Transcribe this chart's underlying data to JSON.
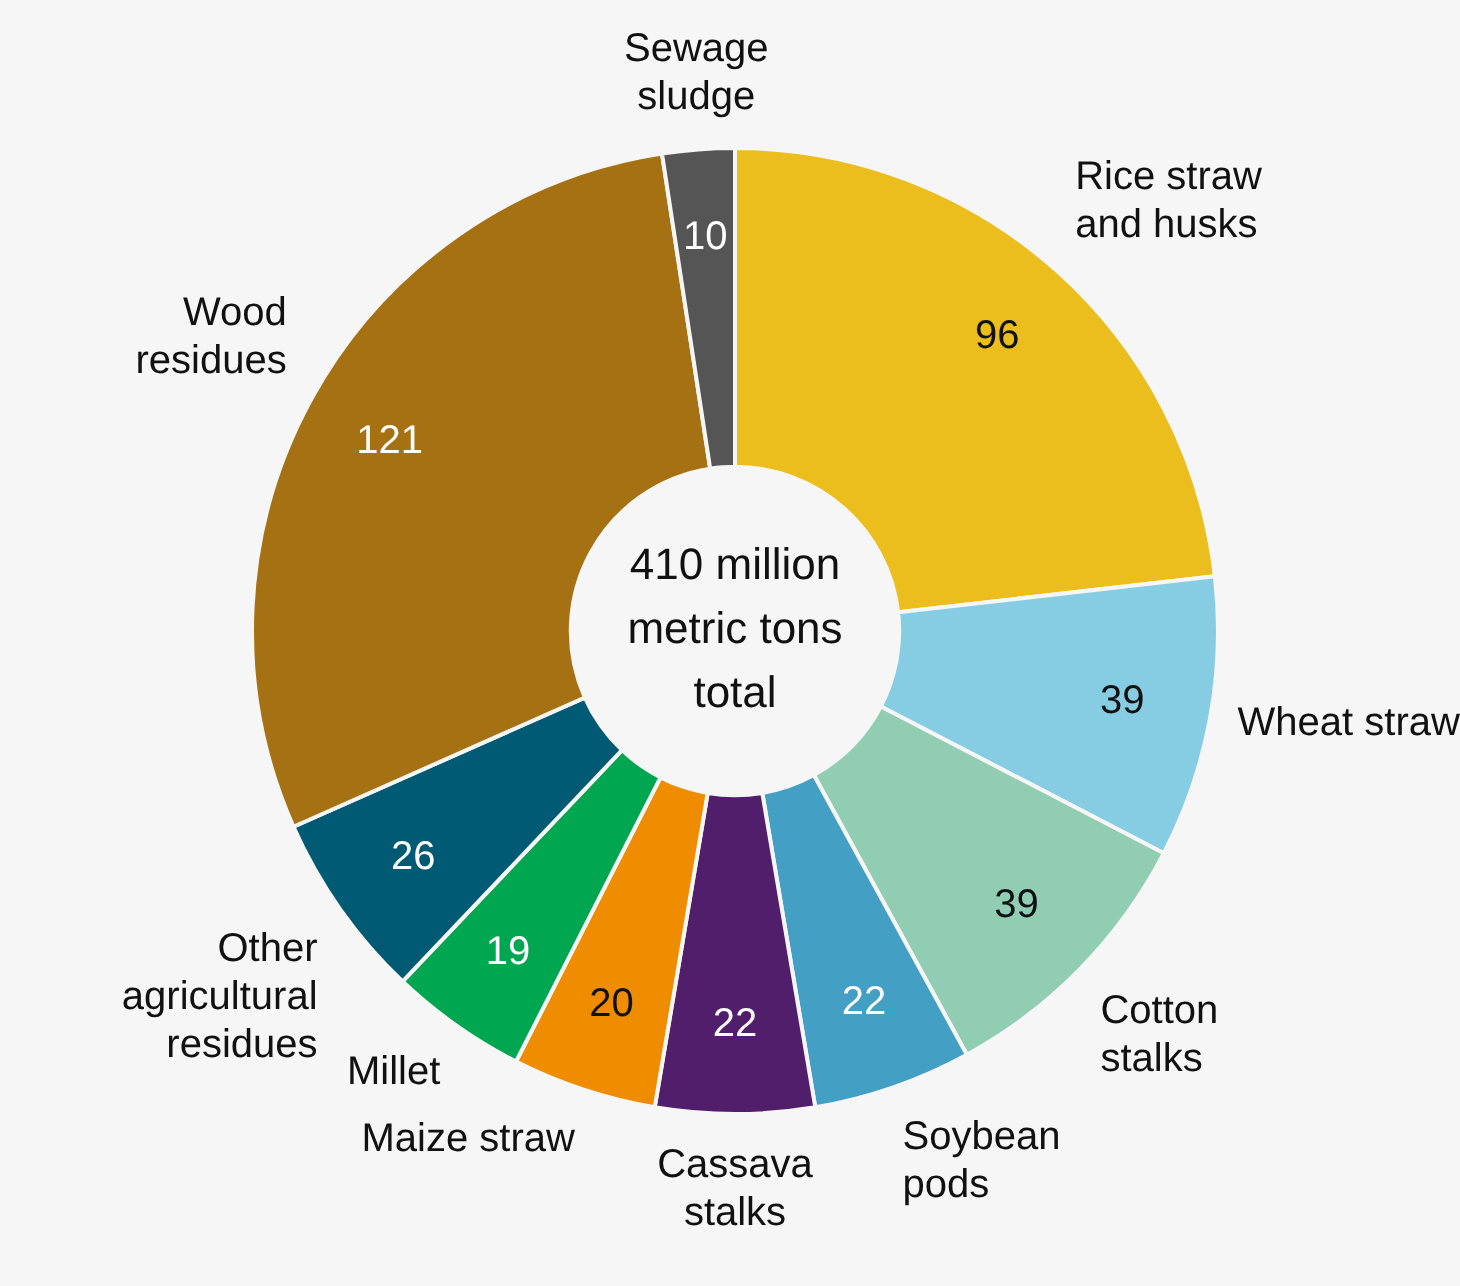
{
  "chart_data": {
    "type": "donut",
    "categories": [
      "Rice straw and husks",
      "Wheat straw",
      "Cotton stalks",
      "Soybean pods",
      "Cassava stalks",
      "Maize straw",
      "Millet",
      "Other agricultural residues",
      "Wood residues",
      "Sewage sludge"
    ],
    "values": [
      96,
      39,
      39,
      22,
      22,
      20,
      19,
      26,
      121,
      10
    ],
    "colors": [
      "#ebbd1d",
      "#86cde3",
      "#90cdb3",
      "#43a0c4",
      "#511e6b",
      "#f08c00",
      "#00a650",
      "#005a73",
      "#a57112",
      "#555555"
    ],
    "data_labels": true,
    "legend": false,
    "annotations": [
      "410 million metric tons total"
    ]
  }
}
